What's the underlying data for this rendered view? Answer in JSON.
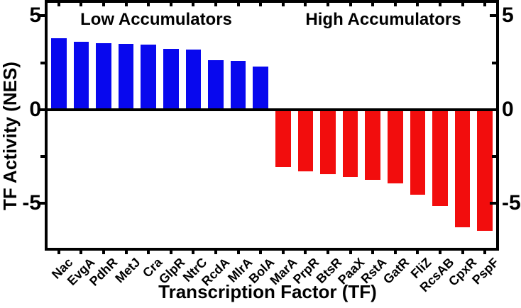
{
  "figure": {
    "background_color": "#ffffff",
    "axis_color": "#000000"
  },
  "chart_data": {
    "type": "bar",
    "title": "",
    "xlabel": "Transcription Factor (TF)",
    "ylabel": "TF Activity (NES)",
    "ylim": [
      -7.4,
      5.7
    ],
    "yticks_major": [
      5,
      0,
      -5
    ],
    "yticks_minor": [
      2.5,
      -2.5
    ],
    "grid": false,
    "zero_line": true,
    "legend": "none",
    "annotations": {
      "low": "Low Accumulators",
      "high": "High Accumulators"
    },
    "series": [
      {
        "name": "Low Accumulators",
        "color": "#0808ee",
        "categories": [
          "Nac",
          "EvgA",
          "PdhR",
          "MetJ",
          "Cra",
          "GlpR",
          "NtrC",
          "RcdA",
          "MlrA",
          "BolA"
        ],
        "values": [
          3.8,
          3.6,
          3.55,
          3.5,
          3.45,
          3.25,
          3.2,
          2.65,
          2.6,
          2.3
        ]
      },
      {
        "name": "High Accumulators",
        "color": "#f20d0d",
        "categories": [
          "MarA",
          "PrpR",
          "BtsR",
          "PaaX",
          "RstA",
          "GatR",
          "FliZ",
          "RcsAB",
          "CpxR",
          "PspF"
        ],
        "values": [
          -3.1,
          -3.3,
          -3.45,
          -3.6,
          -3.75,
          -3.95,
          -4.55,
          -5.15,
          -6.3,
          -6.5
        ]
      }
    ]
  }
}
